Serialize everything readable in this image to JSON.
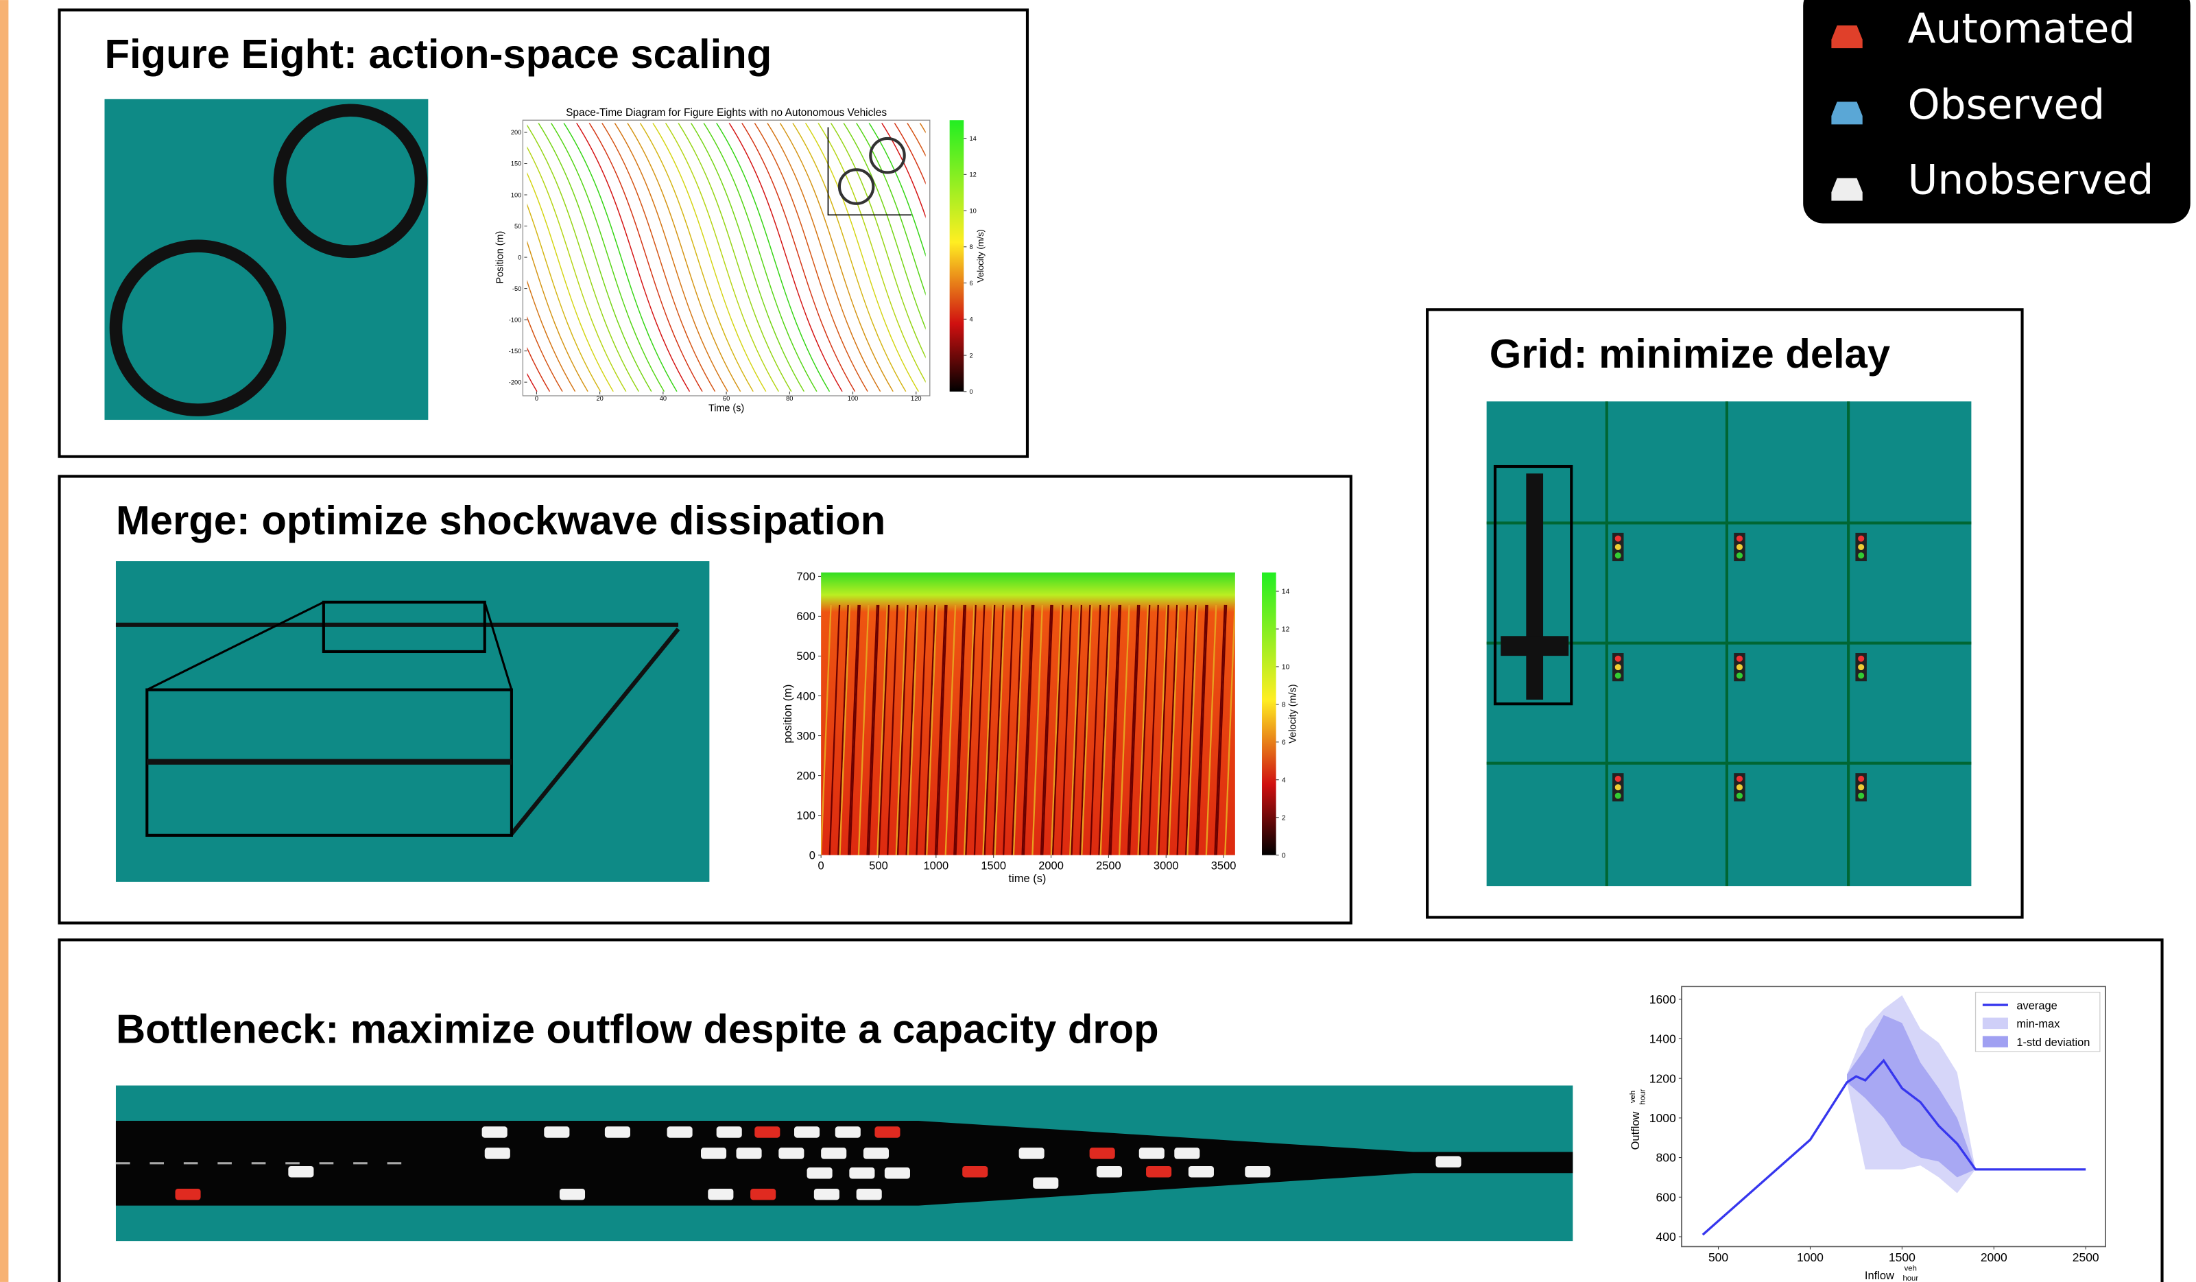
{
  "legend": {
    "items": [
      "Automated",
      "Observed",
      "Unobserved"
    ]
  },
  "panels": [
    {
      "title": "Figure Eight: action-space scaling"
    },
    {
      "title": "Merge: optimize shockwave dissipation"
    },
    {
      "title": "Grid: minimize delay"
    },
    {
      "title": "Bottleneck: maximize outflow despite a capacity drop"
    }
  ],
  "chart_data": [
    {
      "type": "space-time",
      "title": "Space-Time Diagram for Figure Eights with no Autonomous Vehicles",
      "xlabel": "Time (s)",
      "ylabel": "Position (m)",
      "colorbar_label": "Velocity (m/s)",
      "xlim": [
        -3,
        123
      ],
      "ylim": [
        -215,
        215
      ],
      "xticks": [
        0,
        20,
        40,
        60,
        80,
        100,
        120
      ],
      "yticks": [
        -200,
        -150,
        -100,
        -50,
        0,
        50,
        100,
        150,
        200
      ],
      "clim": [
        0,
        15
      ],
      "cticks": [
        0,
        2,
        4,
        6,
        8,
        10,
        12,
        14
      ]
    },
    {
      "type": "space-time",
      "xlabel": "time (s)",
      "ylabel": "position (m)",
      "colorbar_label": "Velocity (m/s)",
      "xlim": [
        0,
        3600
      ],
      "ylim": [
        0,
        710
      ],
      "xticks": [
        0,
        500,
        1000,
        1500,
        2000,
        2500,
        3000,
        3500
      ],
      "yticks": [
        0,
        100,
        200,
        300,
        400,
        500,
        600,
        700
      ],
      "clim": [
        0,
        15
      ],
      "cticks": [
        0,
        2,
        4,
        6,
        8,
        10,
        12,
        14
      ]
    },
    {
      "type": "line",
      "xlabel": "Inflow",
      "ylabel": "Outflow",
      "unit_num": "veh",
      "unit_den": "hour",
      "xlim": [
        300,
        2608
      ],
      "ylim": [
        350,
        1664
      ],
      "xticks": [
        500,
        1000,
        1500,
        2000,
        2500
      ],
      "yticks": [
        400,
        600,
        800,
        1000,
        1200,
        1400,
        1600
      ],
      "x": [
        415,
        1000,
        1200,
        1250,
        1300,
        1400,
        1500,
        1600,
        1700,
        1800,
        1900,
        2000,
        2500
      ],
      "series": [
        {
          "name": "average",
          "color": "#3636ee",
          "values": [
            410,
            890,
            1180,
            1210,
            1190,
            1290,
            1150,
            1080,
            960,
            870,
            740,
            740,
            740
          ]
        }
      ],
      "band_x": [
        1200,
        1300,
        1400,
        1500,
        1600,
        1700,
        1800,
        1900
      ],
      "bands": [
        {
          "name": "min-max",
          "color": "#cfcff8",
          "upper": [
            1220,
            1450,
            1550,
            1620,
            1450,
            1380,
            1230,
            740
          ],
          "lower": [
            1180,
            740,
            740,
            740,
            760,
            700,
            620,
            740
          ]
        },
        {
          "name": "1-std deviation",
          "color": "#a0a0f2",
          "upper": [
            1220,
            1350,
            1520,
            1480,
            1280,
            1150,
            1000,
            740
          ],
          "lower": [
            1180,
            1100,
            1000,
            860,
            800,
            780,
            700,
            740
          ]
        }
      ]
    }
  ]
}
